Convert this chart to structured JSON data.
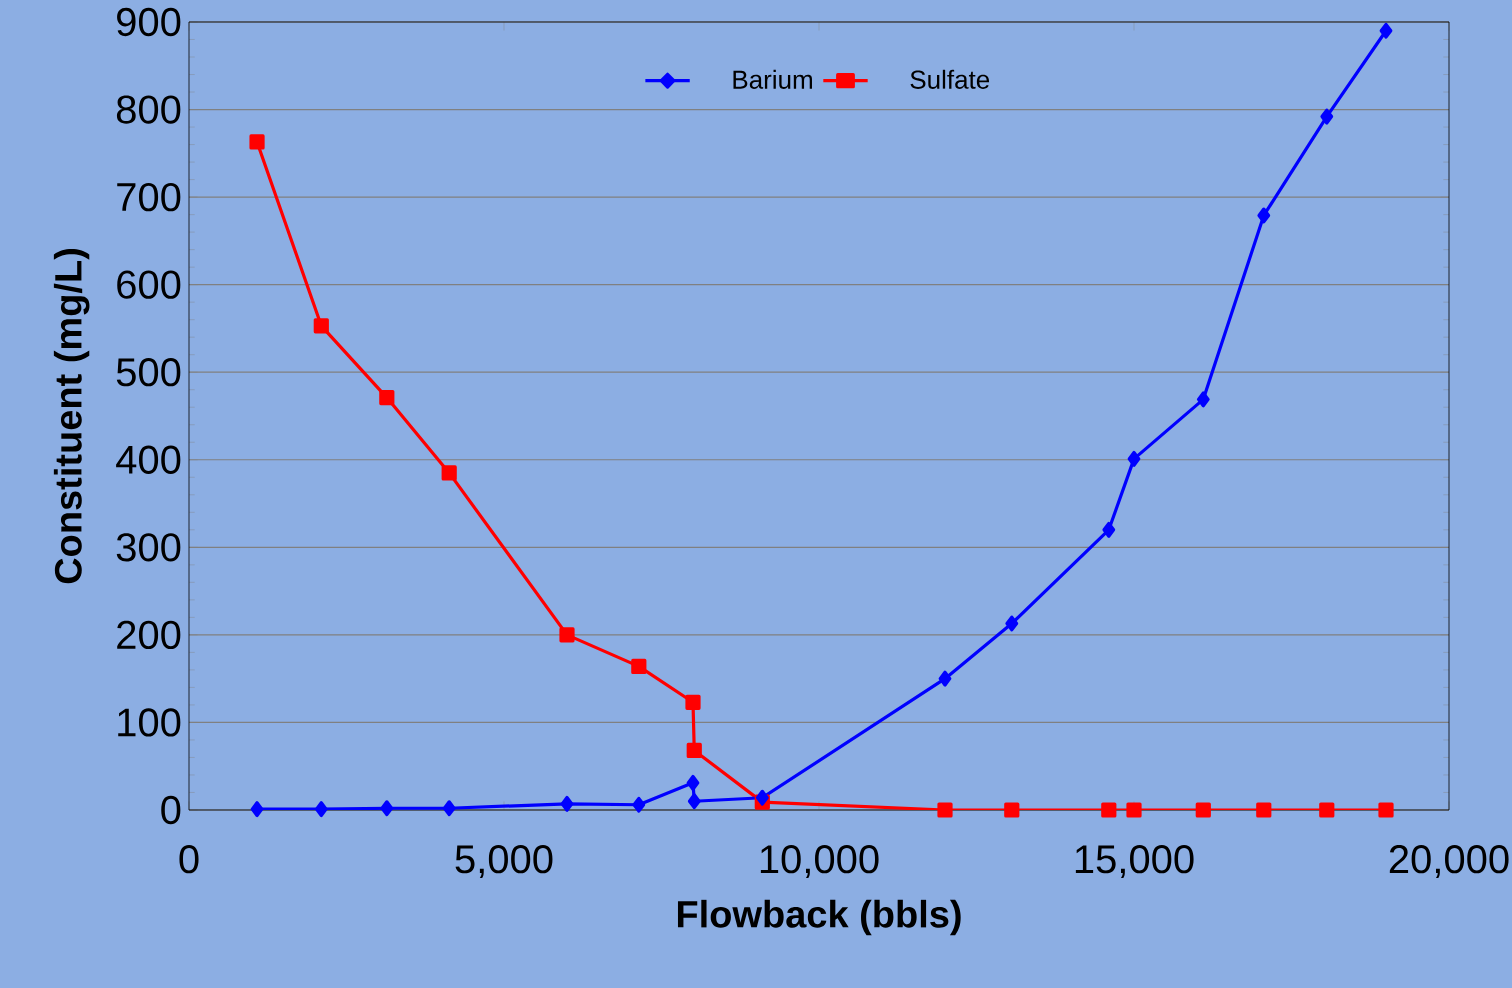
{
  "chart_data": {
    "type": "line",
    "xlabel": "Flowback (bbls)",
    "ylabel": "Constituent (mg/L)",
    "xlim": [
      0,
      20000
    ],
    "xticks": [
      {
        "value": 0,
        "label": "0"
      },
      {
        "value": 5000,
        "label": "5,000"
      },
      {
        "value": 10000,
        "label": "10,000"
      },
      {
        "value": 15000,
        "label": "15,000"
      },
      {
        "value": 20000,
        "label": "20,000"
      }
    ],
    "ylim": [
      0,
      900
    ],
    "yticks": [
      0,
      100,
      200,
      300,
      400,
      500,
      600,
      700,
      800,
      900
    ],
    "grid": "y",
    "legend": "top",
    "series": [
      {
        "name": "Barium",
        "color": "#0000ff",
        "marker": "diamond",
        "x": [
          1080,
          2100,
          3140,
          4130,
          6000,
          7140,
          8000,
          8020,
          9100,
          12000,
          13060,
          14600,
          15000,
          16100,
          17060,
          18060,
          19000
        ],
        "values": [
          1,
          1,
          2,
          2,
          7,
          6,
          31,
          10,
          14,
          150,
          213,
          320,
          401,
          469,
          679,
          792,
          890
        ]
      },
      {
        "name": "Sulfate",
        "color": "#ff0000",
        "marker": "square",
        "x": [
          1080,
          2100,
          3140,
          4130,
          6000,
          7140,
          8000,
          8020,
          9100,
          12000,
          13060,
          14600,
          15000,
          16100,
          17060,
          18060,
          19000
        ],
        "values": [
          763,
          553,
          471,
          385,
          200,
          164,
          123,
          68,
          9,
          0,
          0,
          0,
          0,
          0,
          0,
          0,
          0
        ]
      }
    ]
  }
}
